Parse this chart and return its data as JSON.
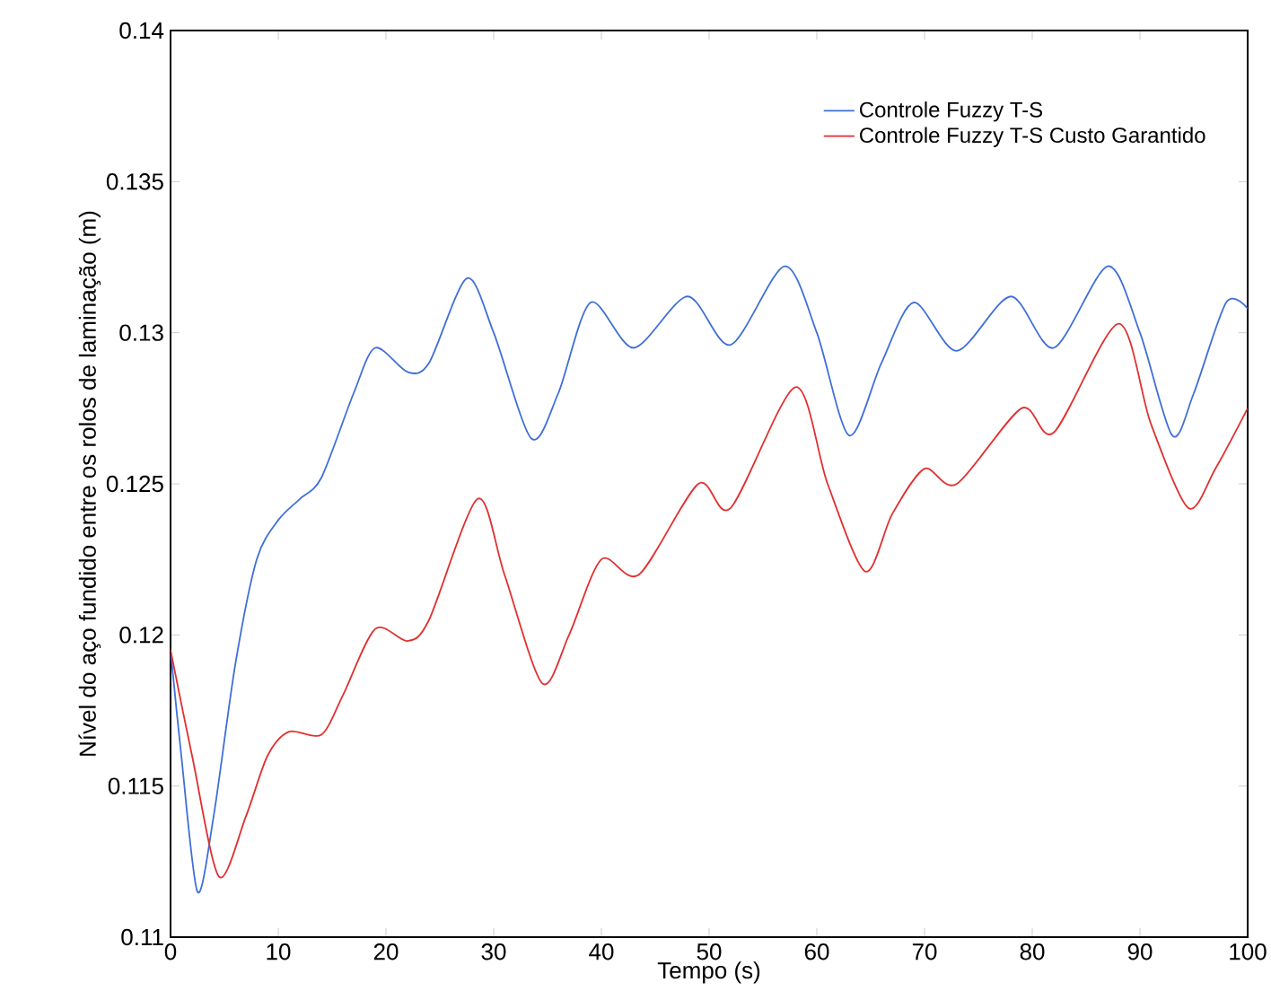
{
  "chart_data": {
    "type": "line",
    "xlabel": "Tempo (s)",
    "ylabel": "Nível do aço fundido entre os rolos de laminação (m)",
    "xlim": [
      0,
      100
    ],
    "ylim": [
      0.11,
      0.14
    ],
    "xticks": [
      0,
      10,
      20,
      30,
      40,
      50,
      60,
      70,
      80,
      90,
      100
    ],
    "yticks": [
      0.11,
      0.115,
      0.12,
      0.125,
      0.13,
      0.135,
      0.14
    ],
    "legend": "top right",
    "grid": false,
    "marker": "none",
    "line_style": "solid",
    "series": [
      {
        "name": "Controle Fuzzy T-S",
        "color": "#3f6fd8",
        "x": [
          0,
          1,
          2.5,
          4,
          6,
          8,
          10,
          12,
          14,
          17,
          19,
          22,
          24,
          27.5,
          30,
          33.5,
          36,
          39,
          43,
          48,
          52,
          57,
          60,
          63,
          66,
          69,
          73,
          78,
          82,
          87,
          90,
          93,
          95,
          98,
          100
        ],
        "values": [
          0.1195,
          0.116,
          0.1115,
          0.114,
          0.119,
          0.1225,
          0.1238,
          0.1245,
          0.1252,
          0.128,
          0.1295,
          0.1287,
          0.129,
          0.1318,
          0.13,
          0.1265,
          0.128,
          0.131,
          0.1295,
          0.1312,
          0.1296,
          0.1322,
          0.13,
          0.1266,
          0.129,
          0.131,
          0.1294,
          0.1312,
          0.1295,
          0.1322,
          0.13,
          0.1266,
          0.128,
          0.131,
          0.1308
        ]
      },
      {
        "name": "Controle Fuzzy T-S Custo Garantido",
        "color": "#e03030",
        "x": [
          0,
          2,
          4.5,
          7,
          9,
          11,
          14,
          16,
          19,
          22,
          24,
          28.5,
          31,
          34.5,
          37,
          40,
          43.5,
          49,
          52,
          58,
          61,
          64.5,
          67,
          70,
          73,
          79,
          82,
          88,
          91,
          94.5,
          97,
          100
        ],
        "values": [
          0.1195,
          0.116,
          0.112,
          0.114,
          0.116,
          0.1168,
          0.1167,
          0.118,
          0.1202,
          0.1198,
          0.1205,
          0.1245,
          0.122,
          0.1184,
          0.12,
          0.1225,
          0.122,
          0.125,
          0.1242,
          0.1282,
          0.125,
          0.1221,
          0.124,
          0.1255,
          0.125,
          0.1275,
          0.1267,
          0.1303,
          0.127,
          0.1242,
          0.1255,
          0.1275
        ]
      }
    ]
  }
}
